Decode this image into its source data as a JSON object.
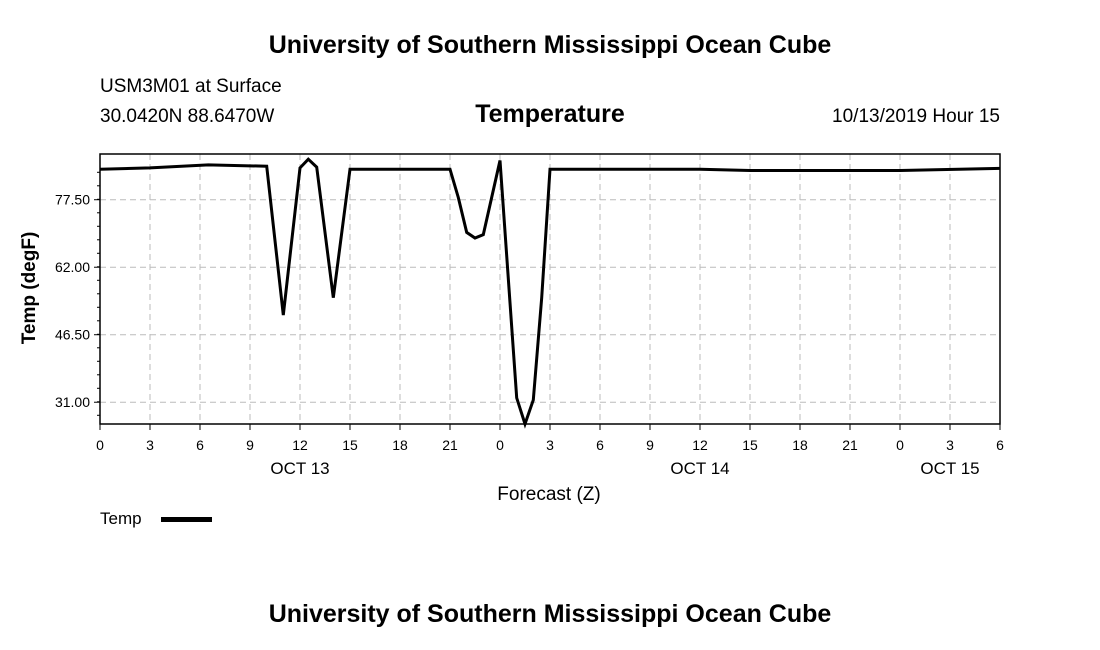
{
  "page": {
    "top_title": "University of Southern Mississippi Ocean Cube",
    "bottom_title": "University of Southern Mississippi Ocean Cube",
    "station": "USM3M01 at Surface",
    "coords": "30.0420N 88.6470W",
    "datetime": "10/13/2019 Hour 15"
  },
  "chart_data": {
    "type": "line",
    "title": "Temperature",
    "xlabel": "Forecast (Z)",
    "ylabel": "Temp (degF)",
    "xlim": [
      0,
      54
    ],
    "ylim": [
      26,
      88
    ],
    "yticks": [
      31.0,
      46.5,
      62.0,
      77.5
    ],
    "ytick_labels": [
      "31.00",
      "46.50",
      "62.00",
      "77.50"
    ],
    "xticks": [
      0,
      3,
      6,
      9,
      12,
      15,
      18,
      21,
      24,
      27,
      30,
      33,
      36,
      39,
      42,
      45,
      48,
      51,
      54
    ],
    "xtick_labels": [
      "0",
      "3",
      "6",
      "9",
      "12",
      "15",
      "18",
      "21",
      "0",
      "3",
      "6",
      "9",
      "12",
      "15",
      "18",
      "21",
      "0",
      "3",
      "6"
    ],
    "date_labels": [
      {
        "x": 12,
        "label": "OCT 13"
      },
      {
        "x": 36,
        "label": "OCT 14"
      },
      {
        "x": 51,
        "label": "OCT 15"
      }
    ],
    "grid": true,
    "legend": {
      "position": "bottom-left",
      "label": "Temp"
    },
    "series": [
      {
        "name": "Temp",
        "x": [
          0,
          3,
          6.5,
          10,
          11,
          12,
          12.5,
          13,
          14,
          15,
          18,
          21,
          21.5,
          22,
          22.5,
          23,
          24,
          25,
          25.5,
          26,
          26.5,
          27,
          30,
          36,
          39,
          42,
          48,
          54
        ],
        "y": [
          84.5,
          84.8,
          85.5,
          85.2,
          51.0,
          84.8,
          86.8,
          85.0,
          55.0,
          84.5,
          84.5,
          84.5,
          78.0,
          70.0,
          68.7,
          69.5,
          86.5,
          32.0,
          26.0,
          31.5,
          55.0,
          84.5,
          84.5,
          84.5,
          84.2,
          84.2,
          84.2,
          84.7
        ]
      }
    ]
  }
}
